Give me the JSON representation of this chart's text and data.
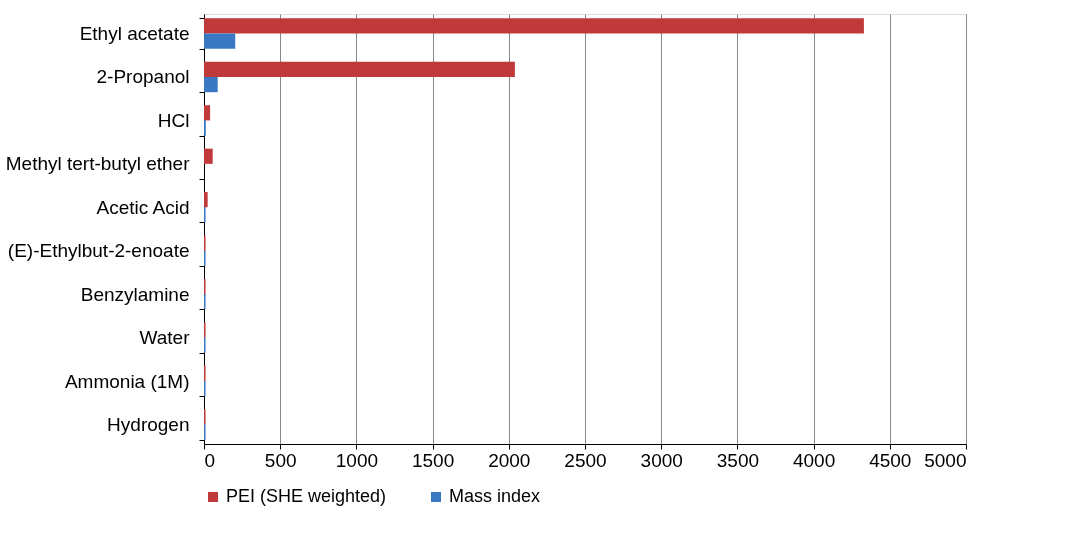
{
  "chart_data": {
    "type": "bar",
    "orientation": "horizontal",
    "categories": [
      "Ethyl acetate",
      "2-Propanol",
      "HCl",
      "Methyl tert-butyl ether",
      "Acetic Acid",
      "(E)-Ethylbut-2-enoate",
      "Benzylamine",
      "Water",
      "Ammonia (1M)",
      "Hydrogen"
    ],
    "series": [
      {
        "name": "PEI (SHE weighted)",
        "color": "#c0393b",
        "values": [
          4330,
          2040,
          40,
          57,
          24,
          10,
          10,
          10,
          10,
          10
        ]
      },
      {
        "name": "Mass index",
        "color": "#3a78c3",
        "values": [
          205,
          90,
          12,
          0,
          10,
          10,
          10,
          10,
          10,
          10
        ]
      }
    ],
    "xlim": [
      0,
      5000
    ],
    "xticks": [
      0,
      500,
      1000,
      1500,
      2000,
      2500,
      3000,
      3500,
      4000,
      4500,
      5000
    ],
    "grid": "x",
    "legend": "bottom"
  }
}
